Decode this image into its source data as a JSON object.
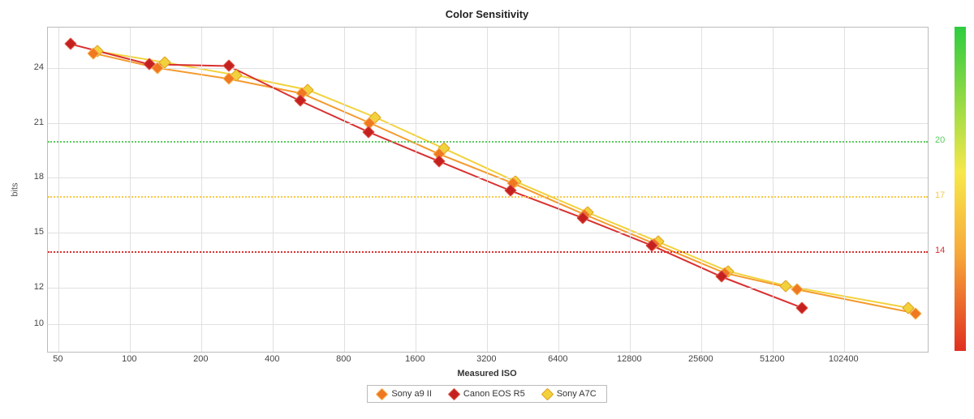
{
  "chart": {
    "type": "line",
    "title": "Color Sensitivity",
    "title_fontsize": 13,
    "xlabel": "Measured ISO",
    "ylabel": "bits",
    "label_fontsize": 11,
    "background_color": "#ffffff",
    "border_color": "#bbbbbb",
    "grid_color": "#e0e0e0",
    "x_scale": "log",
    "x_ticks": [
      50,
      100,
      200,
      400,
      800,
      1600,
      3200,
      6400,
      12800,
      25600,
      51200,
      102400
    ],
    "x_min": 45,
    "x_max": 230000,
    "y_scale": "linear",
    "y_ticks": [
      10,
      12,
      15,
      18,
      21,
      24
    ],
    "y_min": 8.5,
    "y_max": 26.2,
    "marker_style": "diamond",
    "marker_size": 9,
    "line_width": 2,
    "reference_lines": [
      {
        "value": 20,
        "color": "#5cc95c",
        "label": "20"
      },
      {
        "value": 17,
        "color": "#f7c94a",
        "label": "17"
      },
      {
        "value": 14,
        "color": "#d93030",
        "label": "14"
      }
    ],
    "gradient_bar": {
      "top_color": "#2ecc40",
      "mid1_color": "#f7e84a",
      "mid2_color": "#f7a93a",
      "bottom_color": "#e03020",
      "top_value": 26.2,
      "bottom_value": 8.5
    },
    "series": [
      {
        "name": "Sony a9 II",
        "line_color": "#f59a2d",
        "marker_fill": "#f07820",
        "marker_border": "#f7b85a",
        "points": [
          [
            70,
            24.8
          ],
          [
            130,
            24.0
          ],
          [
            260,
            23.4
          ],
          [
            530,
            22.6
          ],
          [
            1020,
            21.0
          ],
          [
            2000,
            19.3
          ],
          [
            4100,
            17.7
          ],
          [
            8200,
            16.0
          ],
          [
            16200,
            14.4
          ],
          [
            32000,
            12.8
          ],
          [
            64500,
            11.9
          ],
          [
            204000,
            10.6
          ]
        ]
      },
      {
        "name": "Canon EOS R5",
        "line_color": "#d93030",
        "marker_fill": "#c52020",
        "marker_border": "#e05a4a",
        "points": [
          [
            56,
            25.3
          ],
          [
            120,
            24.2
          ],
          [
            260,
            24.1
          ],
          [
            520,
            22.2
          ],
          [
            1010,
            20.5
          ],
          [
            2000,
            18.9
          ],
          [
            4000,
            17.3
          ],
          [
            8100,
            15.8
          ],
          [
            15800,
            14.3
          ],
          [
            31000,
            12.6
          ],
          [
            68000,
            10.9
          ]
        ]
      },
      {
        "name": "Sony A7C",
        "line_color": "#f2d23c",
        "marker_fill": "#f2d23c",
        "marker_border": "#e0a020",
        "points": [
          [
            73,
            24.9
          ],
          [
            140,
            24.3
          ],
          [
            280,
            23.6
          ],
          [
            560,
            22.8
          ],
          [
            1080,
            21.3
          ],
          [
            2100,
            19.6
          ],
          [
            4200,
            17.8
          ],
          [
            8500,
            16.1
          ],
          [
            16800,
            14.5
          ],
          [
            33000,
            12.9
          ],
          [
            58000,
            12.1
          ],
          [
            190000,
            10.9
          ]
        ]
      }
    ],
    "plot_draw_order": [
      "Sony A7C",
      "Sony a9 II",
      "Canon EOS R5"
    ]
  }
}
